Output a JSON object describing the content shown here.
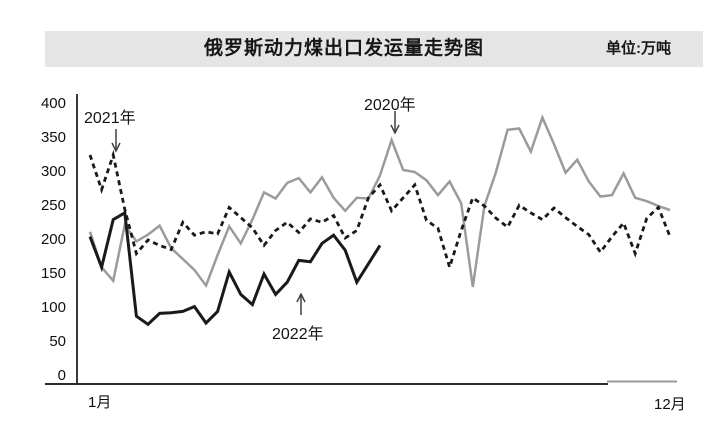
{
  "title_bar": {
    "title": "俄罗斯动力煤出口发运量走势图",
    "unit_label": "单位:万吨"
  },
  "chart_data": {
    "type": "line",
    "title": "俄罗斯动力煤出口发运量走势图",
    "unit": "万吨",
    "x_axis": {
      "first_tick": "1月",
      "last_tick": "12月",
      "note": "weekly points from January to December"
    },
    "y_axis": {
      "ticks": [
        400,
        350,
        300,
        250,
        200,
        150,
        100,
        50,
        0
      ],
      "range": [
        0,
        400
      ]
    },
    "grid": "off",
    "legend": "inline-annotations",
    "series": [
      {
        "name": "2020年",
        "style": "solid",
        "color": "#9b9b9b",
        "values": [
          212,
          160,
          140,
          222,
          198,
          208,
          221,
          188,
          172,
          156,
          133,
          178,
          220,
          195,
          230,
          270,
          261,
          284,
          291,
          270,
          292,
          262,
          243,
          262,
          261,
          295,
          347,
          303,
          300,
          288,
          266,
          286,
          254,
          131,
          250,
          300,
          362,
          364,
          330,
          380,
          341,
          299,
          318,
          286,
          264,
          266,
          298,
          262,
          257,
          250,
          244
        ]
      },
      {
        "name": "2021年",
        "style": "dashed",
        "color": "#1a1a1a",
        "values": [
          325,
          274,
          325,
          245,
          180,
          200,
          192,
          186,
          226,
          207,
          212,
          209,
          248,
          233,
          218,
          192,
          214,
          226,
          211,
          231,
          226,
          236,
          203,
          214,
          262,
          281,
          243,
          262,
          281,
          229,
          217,
          160,
          214,
          262,
          250,
          232,
          219,
          251,
          240,
          230,
          247,
          233,
          220,
          208,
          182,
          205,
          225,
          180,
          232,
          248,
          205
        ]
      },
      {
        "name": "2022年",
        "style": "solid",
        "color": "#1a1a1a",
        "values": [
          205,
          160,
          230,
          240,
          88,
          76,
          92,
          93,
          95,
          102,
          78,
          95,
          153,
          120,
          105,
          150,
          120,
          138,
          170,
          168,
          195,
          207,
          185,
          138,
          165,
          192
        ]
      }
    ],
    "annotations": [
      {
        "label": "2021年",
        "arrow": "down",
        "points_to": "2021年 series peak in January"
      },
      {
        "label": "2020年",
        "arrow": "down",
        "points_to": "2020年 series peak mid-year"
      },
      {
        "label": "2022年",
        "arrow": "up",
        "points_to": "2022年 series line"
      }
    ]
  }
}
